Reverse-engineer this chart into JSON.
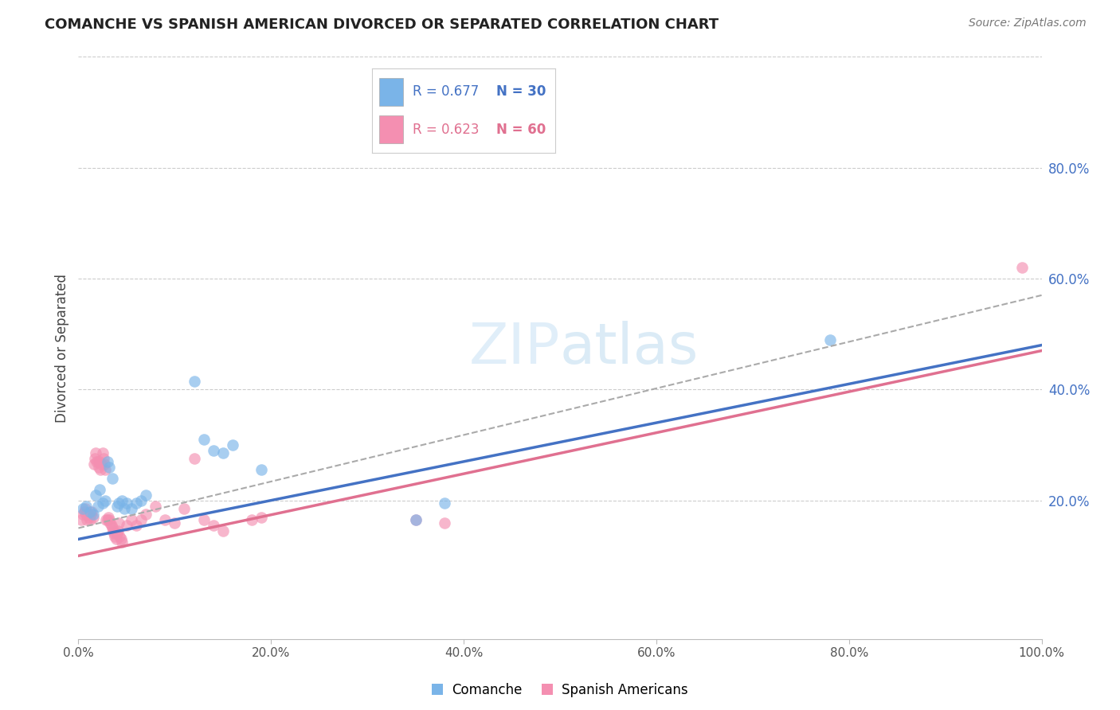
{
  "title": "COMANCHE VS SPANISH AMERICAN DIVORCED OR SEPARATED CORRELATION CHART",
  "source": "Source: ZipAtlas.com",
  "ylabel": "Divorced or Separated",
  "xlim": [
    0.0,
    1.0
  ],
  "ylim": [
    -0.05,
    1.0
  ],
  "xtick_labels": [
    "0.0%",
    "20.0%",
    "40.0%",
    "60.0%",
    "80.0%",
    "100.0%"
  ],
  "xtick_vals": [
    0.0,
    0.2,
    0.4,
    0.6,
    0.8,
    1.0
  ],
  "ytick_labels": [
    "20.0%",
    "40.0%",
    "60.0%",
    "80.0%"
  ],
  "ytick_vals": [
    0.2,
    0.4,
    0.6,
    0.8
  ],
  "watermark_text": "ZIPatlas",
  "background_color": "#ffffff",
  "grid_color": "#cccccc",
  "comanche_color": "#7ab4e8",
  "spanish_color": "#f48fb1",
  "comanche_line_color": "#4472c4",
  "spanish_line_color": "#e07090",
  "dashed_line_color": "#aaaaaa",
  "tick_color": "#4472c4",
  "comanche_R": "0.677",
  "comanche_N": "30",
  "spanish_R": "0.623",
  "spanish_N": "60",
  "blue_line_x0": 0.0,
  "blue_line_y0": 0.13,
  "blue_line_x1": 1.0,
  "blue_line_y1": 0.48,
  "pink_line_x0": 0.0,
  "pink_line_y0": 0.1,
  "pink_line_x1": 1.0,
  "pink_line_y1": 0.47,
  "dash_line_x0": 0.0,
  "dash_line_y0": 0.15,
  "dash_line_x1": 1.0,
  "dash_line_y1": 0.57,
  "comanche_points": [
    [
      0.005,
      0.185
    ],
    [
      0.008,
      0.19
    ],
    [
      0.012,
      0.18
    ],
    [
      0.015,
      0.175
    ],
    [
      0.018,
      0.21
    ],
    [
      0.02,
      0.19
    ],
    [
      0.022,
      0.22
    ],
    [
      0.025,
      0.195
    ],
    [
      0.028,
      0.2
    ],
    [
      0.03,
      0.27
    ],
    [
      0.032,
      0.26
    ],
    [
      0.035,
      0.24
    ],
    [
      0.04,
      0.19
    ],
    [
      0.042,
      0.195
    ],
    [
      0.045,
      0.2
    ],
    [
      0.048,
      0.185
    ],
    [
      0.05,
      0.195
    ],
    [
      0.055,
      0.185
    ],
    [
      0.06,
      0.195
    ],
    [
      0.065,
      0.2
    ],
    [
      0.07,
      0.21
    ],
    [
      0.12,
      0.415
    ],
    [
      0.13,
      0.31
    ],
    [
      0.14,
      0.29
    ],
    [
      0.15,
      0.285
    ],
    [
      0.16,
      0.3
    ],
    [
      0.19,
      0.255
    ],
    [
      0.35,
      0.165
    ],
    [
      0.38,
      0.195
    ],
    [
      0.78,
      0.49
    ]
  ],
  "spanish_points": [
    [
      0.003,
      0.165
    ],
    [
      0.005,
      0.175
    ],
    [
      0.006,
      0.18
    ],
    [
      0.007,
      0.185
    ],
    [
      0.008,
      0.175
    ],
    [
      0.009,
      0.165
    ],
    [
      0.01,
      0.175
    ],
    [
      0.011,
      0.17
    ],
    [
      0.012,
      0.165
    ],
    [
      0.013,
      0.175
    ],
    [
      0.014,
      0.18
    ],
    [
      0.015,
      0.17
    ],
    [
      0.016,
      0.265
    ],
    [
      0.017,
      0.275
    ],
    [
      0.018,
      0.285
    ],
    [
      0.019,
      0.27
    ],
    [
      0.02,
      0.27
    ],
    [
      0.021,
      0.26
    ],
    [
      0.022,
      0.27
    ],
    [
      0.023,
      0.255
    ],
    [
      0.024,
      0.265
    ],
    [
      0.025,
      0.285
    ],
    [
      0.026,
      0.275
    ],
    [
      0.027,
      0.265
    ],
    [
      0.028,
      0.255
    ],
    [
      0.029,
      0.165
    ],
    [
      0.03,
      0.165
    ],
    [
      0.031,
      0.17
    ],
    [
      0.032,
      0.165
    ],
    [
      0.033,
      0.16
    ],
    [
      0.034,
      0.155
    ],
    [
      0.035,
      0.15
    ],
    [
      0.036,
      0.145
    ],
    [
      0.037,
      0.14
    ],
    [
      0.038,
      0.135
    ],
    [
      0.039,
      0.13
    ],
    [
      0.04,
      0.14
    ],
    [
      0.041,
      0.145
    ],
    [
      0.042,
      0.16
    ],
    [
      0.043,
      0.135
    ],
    [
      0.044,
      0.13
    ],
    [
      0.045,
      0.125
    ],
    [
      0.05,
      0.155
    ],
    [
      0.055,
      0.165
    ],
    [
      0.06,
      0.155
    ],
    [
      0.065,
      0.165
    ],
    [
      0.07,
      0.175
    ],
    [
      0.08,
      0.19
    ],
    [
      0.09,
      0.165
    ],
    [
      0.1,
      0.16
    ],
    [
      0.11,
      0.185
    ],
    [
      0.12,
      0.275
    ],
    [
      0.13,
      0.165
    ],
    [
      0.14,
      0.155
    ],
    [
      0.15,
      0.145
    ],
    [
      0.18,
      0.165
    ],
    [
      0.19,
      0.17
    ],
    [
      0.35,
      0.165
    ],
    [
      0.38,
      0.16
    ],
    [
      0.98,
      0.62
    ]
  ]
}
